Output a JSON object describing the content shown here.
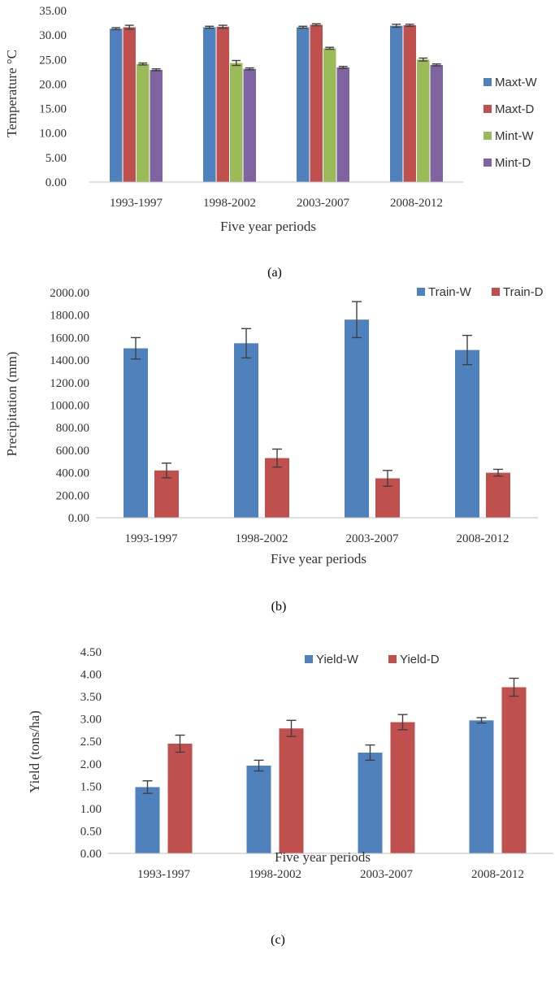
{
  "colors": {
    "blue": "#4F81BD",
    "red": "#C0504D",
    "green": "#9BBB59",
    "purple": "#8064A2",
    "axis": "#bfbfbf",
    "error_bar": "#404040"
  },
  "chart_data": [
    {
      "type": "bar",
      "title": "",
      "panel_label": "(a)",
      "xlabel": "Five year periods",
      "ylabel": "Temperature °C",
      "ylim": [
        0,
        35
      ],
      "yticks": [
        "0.00",
        "5.00",
        "10.00",
        "15.00",
        "20.00",
        "25.00",
        "30.00",
        "35.00"
      ],
      "legend_position": "right",
      "categories": [
        "1993-1997",
        "1998-2002",
        "2003-2007",
        "2008-2012"
      ],
      "series": [
        {
          "name": "Maxt-W",
          "color": "#4F81BD",
          "values": [
            31.3,
            31.6,
            31.6,
            31.9
          ],
          "errors": [
            0.2,
            0.2,
            0.2,
            0.3
          ]
        },
        {
          "name": "Maxt-D",
          "color": "#C0504D",
          "values": [
            31.6,
            31.7,
            32.1,
            32.0
          ],
          "errors": [
            0.4,
            0.3,
            0.2,
            0.2
          ]
        },
        {
          "name": "Mint-W",
          "color": "#9BBB59",
          "values": [
            24.1,
            24.3,
            27.3,
            25.0
          ],
          "errors": [
            0.2,
            0.5,
            0.2,
            0.3
          ]
        },
        {
          "name": "Mint-D",
          "color": "#8064A2",
          "values": [
            22.9,
            23.1,
            23.4,
            23.9
          ],
          "errors": [
            0.2,
            0.2,
            0.2,
            0.2
          ]
        }
      ]
    },
    {
      "type": "bar",
      "title": "",
      "panel_label": "(b)",
      "xlabel": "Five year periods",
      "ylabel": "Precipitation (mm)",
      "ylim": [
        0,
        2000
      ],
      "yticks": [
        "0.00",
        "200.00",
        "400.00",
        "600.00",
        "800.00",
        "1000.00",
        "1200.00",
        "1400.00",
        "1600.00",
        "1800.00",
        "2000.00"
      ],
      "legend_position": "top-right",
      "categories": [
        "1993-1997",
        "1998-2002",
        "2003-2007",
        "2008-2012"
      ],
      "series": [
        {
          "name": "Train-W",
          "color": "#4F81BD",
          "values": [
            1505,
            1550,
            1760,
            1490
          ],
          "errors": [
            95,
            130,
            160,
            130
          ]
        },
        {
          "name": "Train-D",
          "color": "#C0504D",
          "values": [
            420,
            530,
            350,
            400
          ],
          "errors": [
            65,
            80,
            70,
            30
          ]
        }
      ]
    },
    {
      "type": "bar",
      "title": "",
      "panel_label": "(c)",
      "xlabel": "Five year periods",
      "ylabel": "Yield (tons/ha)",
      "ylim": [
        0,
        4.5
      ],
      "yticks": [
        "0.00",
        "0.50",
        "1.00",
        "1.50",
        "2.00",
        "2.50",
        "3.00",
        "3.50",
        "4.00",
        "4.50"
      ],
      "legend_position": "top",
      "categories": [
        "1993-1997",
        "1998-2002",
        "2003-2007",
        "2008-2012"
      ],
      "series": [
        {
          "name": "Yield-W",
          "color": "#4F81BD",
          "values": [
            1.48,
            1.96,
            2.25,
            2.97
          ],
          "errors": [
            0.14,
            0.12,
            0.17,
            0.06
          ]
        },
        {
          "name": "Yield-D",
          "color": "#C0504D",
          "values": [
            2.45,
            2.79,
            2.93,
            3.71
          ],
          "errors": [
            0.19,
            0.18,
            0.17,
            0.2
          ]
        }
      ]
    }
  ]
}
